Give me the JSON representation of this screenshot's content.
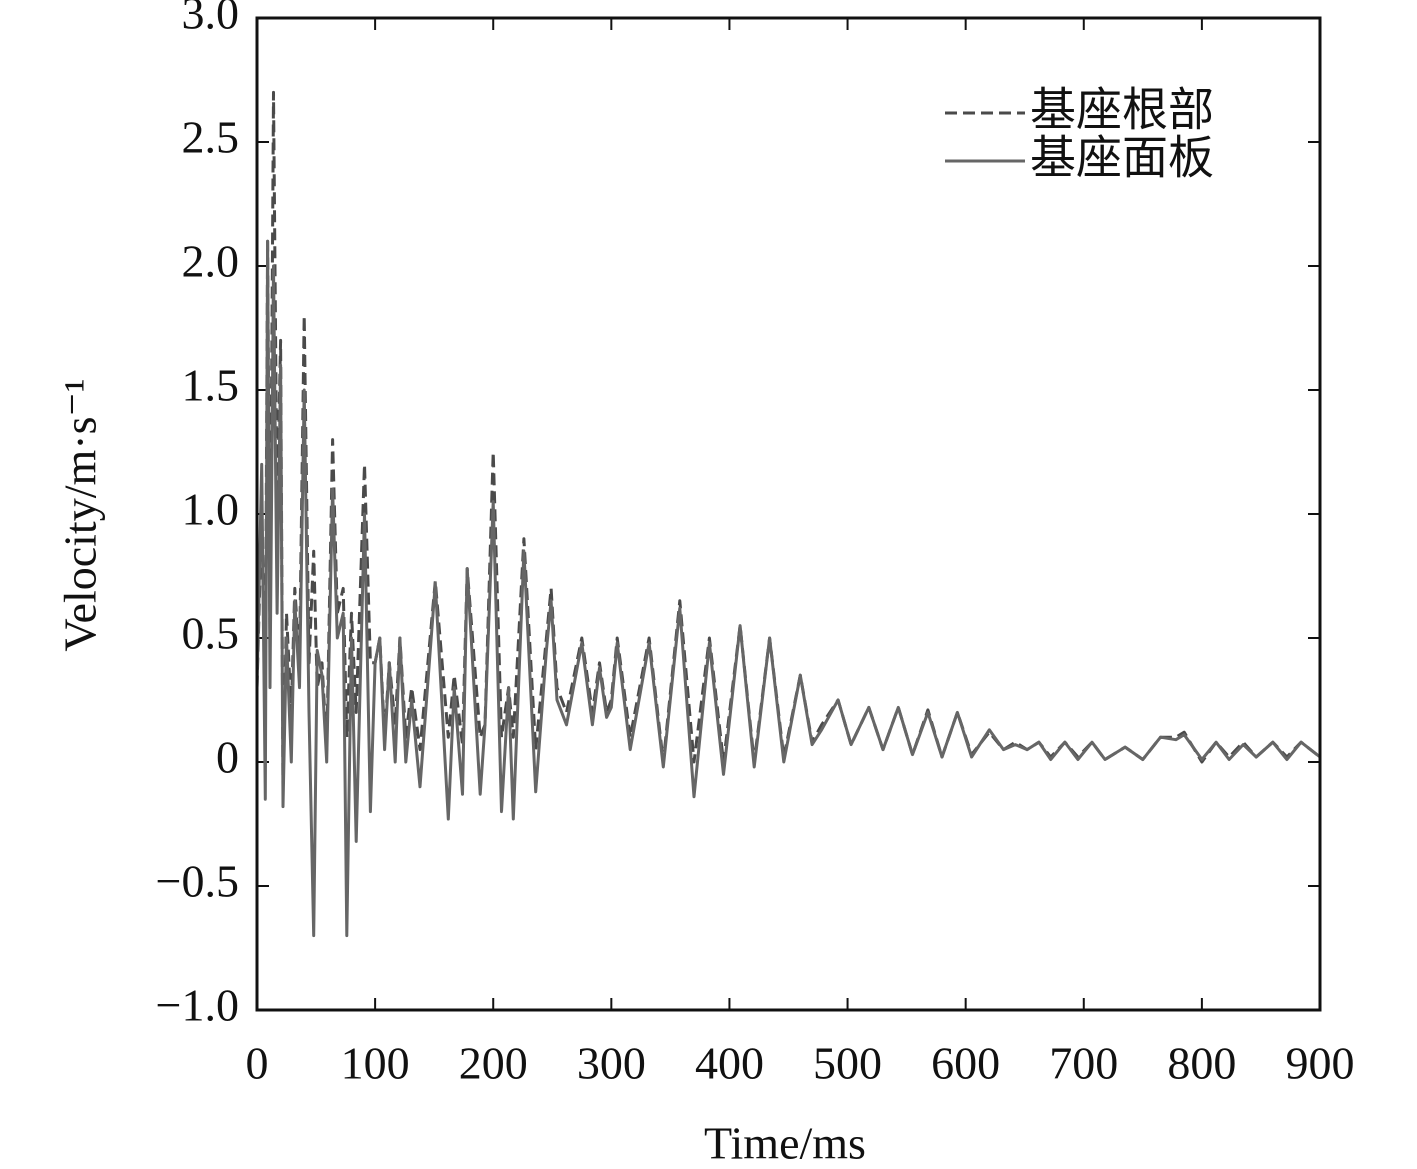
{
  "chart_data": {
    "type": "line",
    "x_label": "Time/ms",
    "y_label": "Velocity/m·s⁻¹",
    "x": [
      0,
      4,
      7,
      9,
      11,
      14,
      17,
      20,
      22,
      25,
      29,
      32,
      36,
      40,
      44,
      48,
      51,
      55,
      59,
      64,
      68,
      73,
      76,
      80,
      84,
      91,
      96,
      100,
      104,
      108,
      112,
      117,
      121,
      126,
      131,
      138,
      151,
      162,
      167,
      174,
      178,
      189,
      193,
      200,
      207,
      213,
      217,
      226,
      236,
      245,
      249,
      254,
      262,
      275,
      284,
      290,
      296,
      300,
      305,
      316,
      332,
      344,
      358,
      370,
      383,
      395,
      409,
      421,
      434,
      446,
      460,
      470,
      478,
      492,
      503,
      518,
      530,
      543,
      555,
      568,
      580,
      593,
      605,
      620,
      632,
      642,
      652,
      662,
      672,
      684,
      695,
      707,
      718,
      735,
      750,
      765,
      778,
      785,
      800,
      812,
      823,
      835,
      846,
      860,
      872,
      884,
      900
    ],
    "series": [
      {
        "name": "基座根部",
        "color": "#4a4a4a",
        "dash": true,
        "values": [
          0.3,
          1.0,
          0.3,
          2.1,
          0.5,
          2.7,
          1.0,
          1.7,
          -0.1,
          0.6,
          0.2,
          0.7,
          0.4,
          1.8,
          0.4,
          0.85,
          0.3,
          0.4,
          0.05,
          1.3,
          0.6,
          0.7,
          0.1,
          0.6,
          0.2,
          1.2,
          0.4,
          0.4,
          0.5,
          0.1,
          0.4,
          0.15,
          0.5,
          0.1,
          0.3,
          0.05,
          0.73,
          0.1,
          0.35,
          0.07,
          0.78,
          0.1,
          0.15,
          1.25,
          0.1,
          0.3,
          0.1,
          0.9,
          0.05,
          0.5,
          0.7,
          0.3,
          0.2,
          0.5,
          0.2,
          0.4,
          0.2,
          0.25,
          0.5,
          0.1,
          0.5,
          0.0,
          0.65,
          0.0,
          0.5,
          0.0,
          0.55,
          0.0,
          0.5,
          0.02,
          0.35,
          0.08,
          0.15,
          0.25,
          0.07,
          0.22,
          0.05,
          0.22,
          0.03,
          0.21,
          0.02,
          0.2,
          0.03,
          0.12,
          0.05,
          0.08,
          0.05,
          0.08,
          0.02,
          0.08,
          0.02,
          0.08,
          0.01,
          0.06,
          0.01,
          0.1,
          0.1,
          0.12,
          0.0,
          0.08,
          0.02,
          0.08,
          0.02,
          0.08,
          0.02,
          0.08,
          0.02
        ]
      },
      {
        "name": "基座面板",
        "color": "#666666",
        "dash": false,
        "values": [
          0.3,
          1.2,
          -0.15,
          2.1,
          0.3,
          2.0,
          0.6,
          1.6,
          -0.18,
          0.5,
          0.0,
          0.65,
          0.3,
          1.5,
          0.2,
          -0.7,
          0.45,
          0.35,
          0.0,
          1.1,
          0.5,
          0.6,
          -0.7,
          0.5,
          -0.32,
          1.0,
          -0.2,
          0.4,
          0.5,
          0.05,
          0.4,
          0.0,
          0.5,
          0.0,
          0.25,
          -0.1,
          0.72,
          -0.23,
          0.3,
          -0.13,
          0.78,
          -0.13,
          0.15,
          1.05,
          -0.2,
          0.3,
          -0.23,
          0.85,
          -0.12,
          0.45,
          0.65,
          0.25,
          0.15,
          0.48,
          0.15,
          0.38,
          0.18,
          0.22,
          0.48,
          0.05,
          0.48,
          -0.02,
          0.62,
          -0.14,
          0.48,
          -0.05,
          0.55,
          -0.02,
          0.5,
          0.0,
          0.35,
          0.07,
          0.13,
          0.25,
          0.07,
          0.22,
          0.05,
          0.22,
          0.03,
          0.2,
          0.02,
          0.2,
          0.02,
          0.13,
          0.05,
          0.07,
          0.05,
          0.08,
          0.01,
          0.08,
          0.01,
          0.08,
          0.01,
          0.06,
          0.01,
          0.1,
          0.09,
          0.11,
          0.01,
          0.08,
          0.01,
          0.07,
          0.02,
          0.08,
          0.01,
          0.08,
          0.02
        ]
      }
    ],
    "xlim": [
      0,
      900
    ],
    "xticks": [
      0,
      100,
      200,
      300,
      400,
      500,
      600,
      700,
      800,
      900
    ],
    "ylim": [
      -1.0,
      3.0
    ],
    "yticks": [
      {
        "value": 3.0,
        "label": "3.0"
      },
      {
        "value": 2.5,
        "label": "2.5"
      },
      {
        "value": 2.0,
        "label": "2.0"
      },
      {
        "value": 1.5,
        "label": "1.5"
      },
      {
        "value": 1.0,
        "label": "1.0"
      },
      {
        "value": 0.5,
        "label": "0.5"
      },
      0,
      {
        "value": -0.5,
        "label": "−0.5"
      },
      {
        "value": -1.0,
        "label": "−1.0"
      }
    ],
    "legend": "upper right",
    "grid": false
  }
}
